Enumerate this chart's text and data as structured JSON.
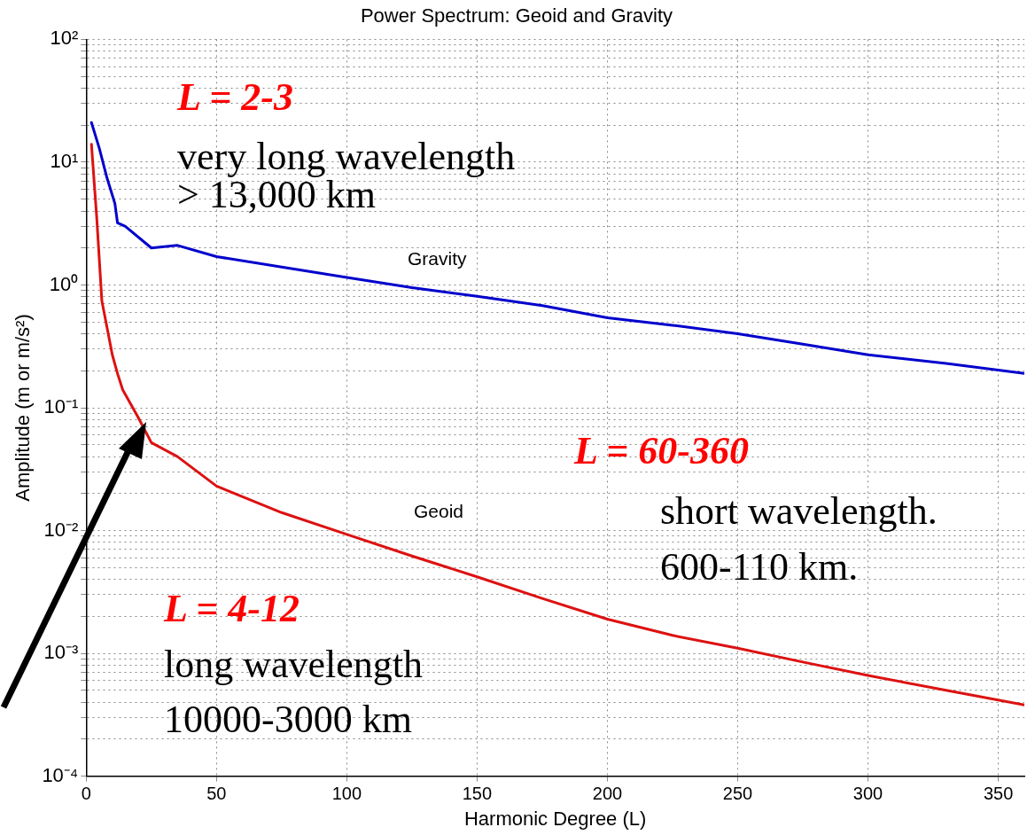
{
  "chart_data": {
    "type": "line",
    "title": "Power Spectrum: Geoid and Gravity",
    "xlabel": "Harmonic Degree (L)",
    "ylabel": "Amplitude (m or m/s²)",
    "log": "y",
    "grid": true,
    "legend": false,
    "marker": "none",
    "line_style": "solid",
    "xlim": [
      0,
      360
    ],
    "xticks": [
      0,
      50,
      100,
      150,
      200,
      250,
      300,
      350
    ],
    "ylim": [
      0.0001,
      100
    ],
    "yticks": [
      {
        "value": 0.0001,
        "label": "10⁻⁴"
      },
      {
        "value": 0.0002,
        "label": null
      },
      {
        "value": 0.0003,
        "label": null
      },
      {
        "value": 0.0004,
        "label": null
      },
      {
        "value": 0.0005,
        "label": null
      },
      {
        "value": 0.0006,
        "label": null
      },
      {
        "value": 0.0007,
        "label": null
      },
      {
        "value": 0.0008,
        "label": null
      },
      {
        "value": 0.0009,
        "label": null
      },
      {
        "value": 0.001,
        "label": "10⁻³"
      },
      {
        "value": 0.002,
        "label": null
      },
      {
        "value": 0.003,
        "label": null
      },
      {
        "value": 0.004,
        "label": null
      },
      {
        "value": 0.005,
        "label": null
      },
      {
        "value": 0.006,
        "label": null
      },
      {
        "value": 0.007,
        "label": null
      },
      {
        "value": 0.008,
        "label": null
      },
      {
        "value": 0.009,
        "label": null
      },
      {
        "value": 0.01,
        "label": "10⁻²"
      },
      {
        "value": 0.02,
        "label": null
      },
      {
        "value": 0.03,
        "label": null
      },
      {
        "value": 0.04,
        "label": null
      },
      {
        "value": 0.05,
        "label": null
      },
      {
        "value": 0.06,
        "label": null
      },
      {
        "value": 0.07,
        "label": null
      },
      {
        "value": 0.08,
        "label": null
      },
      {
        "value": 0.09,
        "label": null
      },
      {
        "value": 0.1,
        "label": "10⁻¹"
      },
      {
        "value": 0.2,
        "label": null
      },
      {
        "value": 0.3,
        "label": null
      },
      {
        "value": 0.4,
        "label": null
      },
      {
        "value": 0.5,
        "label": null
      },
      {
        "value": 0.6,
        "label": null
      },
      {
        "value": 0.7,
        "label": null
      },
      {
        "value": 0.8,
        "label": null
      },
      {
        "value": 0.9,
        "label": null
      },
      {
        "value": 1,
        "label": "10⁰"
      },
      {
        "value": 2,
        "label": null
      },
      {
        "value": 3,
        "label": null
      },
      {
        "value": 4,
        "label": null
      },
      {
        "value": 5,
        "label": null
      },
      {
        "value": 6,
        "label": null
      },
      {
        "value": 7,
        "label": null
      },
      {
        "value": 8,
        "label": null
      },
      {
        "value": 9,
        "label": null
      },
      {
        "value": 10,
        "label": "10¹"
      },
      {
        "value": 20,
        "label": null
      },
      {
        "value": 30,
        "label": null
      },
      {
        "value": 40,
        "label": null
      },
      {
        "value": 50,
        "label": null
      },
      {
        "value": 60,
        "label": null
      },
      {
        "value": 70,
        "label": null
      },
      {
        "value": 80,
        "label": null
      },
      {
        "value": 90,
        "label": null
      },
      {
        "value": 100,
        "label": "10²"
      }
    ],
    "series": [
      {
        "color": "#0000cc",
        "x": [
          2,
          5,
          8,
          11,
          12,
          15,
          25,
          35,
          50,
          75,
          100,
          125,
          150,
          175,
          200,
          225,
          250,
          275,
          300,
          330,
          360
        ],
        "values": [
          21,
          13,
          7.4,
          4.6,
          3.2,
          3.0,
          2.0,
          2.1,
          1.7,
          1.4,
          1.15,
          0.95,
          0.81,
          0.68,
          0.54,
          0.47,
          0.4,
          0.33,
          0.27,
          0.23,
          0.19
        ]
      },
      {
        "color": "#dd1111",
        "x": [
          2,
          4,
          6,
          10,
          12,
          14,
          20,
          25,
          35,
          50,
          75,
          100,
          125,
          150,
          175,
          200,
          225,
          250,
          275,
          300,
          330,
          360
        ],
        "values": [
          14,
          3.6,
          0.74,
          0.27,
          0.19,
          0.14,
          0.083,
          0.052,
          0.04,
          0.023,
          0.014,
          0.0093,
          0.0062,
          0.0042,
          0.0028,
          0.0019,
          0.0014,
          0.0011,
          0.00085,
          0.00066,
          0.0005,
          0.00038
        ]
      }
    ],
    "annotations": [
      "Gravity",
      "Geoid",
      "L = 2-3",
      "very long wavelength",
      "> 13,000 km",
      "L = 4-12",
      "long wavelength",
      "10000-3000 km",
      "L = 60-360",
      "short wavelength.",
      "600-110 km."
    ]
  }
}
